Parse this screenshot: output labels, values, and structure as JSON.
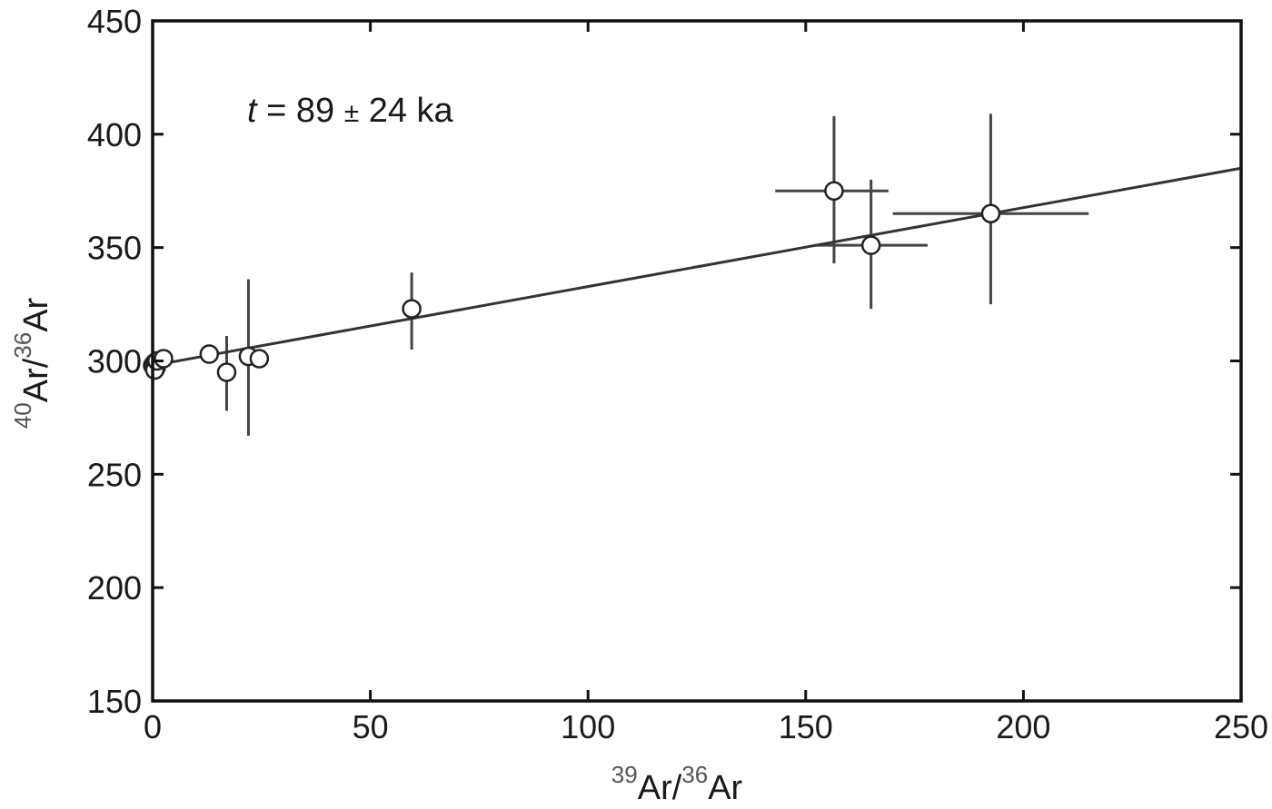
{
  "chart_data": {
    "type": "scatter",
    "title": "",
    "xlabel": {
      "pre": "39",
      "mid": "Ar/",
      "sup": "36",
      "post": "Ar"
    },
    "ylabel": {
      "pre": "40",
      "mid": "Ar/",
      "sup": "36",
      "post": "Ar"
    },
    "xlim": [
      0,
      250
    ],
    "ylim": [
      150,
      450
    ],
    "xticks": [
      0,
      50,
      100,
      150,
      200,
      250
    ],
    "yticks": [
      150,
      200,
      250,
      300,
      350,
      400,
      450
    ],
    "grid": false,
    "annotation": {
      "italic": "t",
      "mid": " = 89 ",
      "pm": "±",
      "post": " 24 ka"
    },
    "fit_line": {
      "x": [
        0,
        250
      ],
      "y": [
        298,
        385
      ]
    },
    "points": [
      {
        "x": 0,
        "y": 298,
        "filled": true
      },
      {
        "x": 0.4,
        "y": 299,
        "filled": true
      },
      {
        "x": 0.8,
        "y": 297,
        "filled": true
      },
      {
        "x": 1.2,
        "y": 300,
        "filled": true
      },
      {
        "x": 0.5,
        "y": 296,
        "filled": false
      },
      {
        "x": 1,
        "y": 300,
        "filled": false
      },
      {
        "x": 2.5,
        "y": 301,
        "filled": false
      },
      {
        "x": 13,
        "y": 303,
        "filled": false
      },
      {
        "x": 17,
        "y": 295,
        "filled": false,
        "yerr": [
          278,
          311
        ]
      },
      {
        "x": 22,
        "y": 302,
        "filled": false,
        "yerr": [
          267,
          336
        ]
      },
      {
        "x": 24.5,
        "y": 301,
        "filled": false
      },
      {
        "x": 59.5,
        "y": 323,
        "filled": false,
        "yerr": [
          305,
          339
        ]
      },
      {
        "x": 156.5,
        "y": 375,
        "filled": false,
        "xerr": [
          143,
          169
        ],
        "yerr": [
          343,
          408
        ]
      },
      {
        "x": 165,
        "y": 351,
        "filled": false,
        "xerr": [
          152,
          178
        ],
        "yerr": [
          323,
          380
        ]
      },
      {
        "x": 192.5,
        "y": 365,
        "filled": false,
        "xerr": [
          170,
          215
        ],
        "yerr": [
          325,
          409
        ]
      }
    ]
  }
}
